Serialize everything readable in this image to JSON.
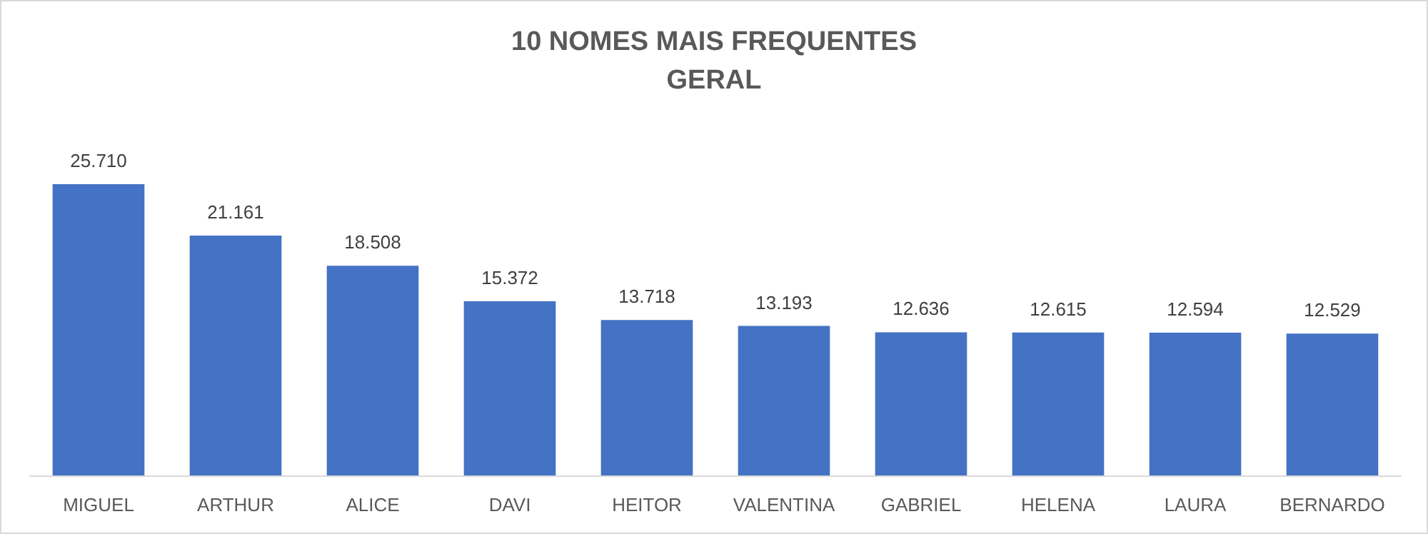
{
  "chart_data": {
    "type": "bar",
    "title": "10 NOMES MAIS FREQUENTES",
    "subtitle": "GERAL",
    "categories": [
      "MIGUEL",
      "ARTHUR",
      "ALICE",
      "DAVI",
      "HEITOR",
      "VALENTINA",
      "GABRIEL",
      "HELENA",
      "LAURA",
      "BERNARDO"
    ],
    "values": [
      25710,
      21161,
      18508,
      15372,
      13718,
      13193,
      12636,
      12615,
      12594,
      12529
    ],
    "value_labels": [
      "25.710",
      "21.161",
      "18.508",
      "15.372",
      "13.718",
      "13.193",
      "12.636",
      "12.615",
      "12.594",
      "12.529"
    ],
    "color": "#4472c4"
  }
}
